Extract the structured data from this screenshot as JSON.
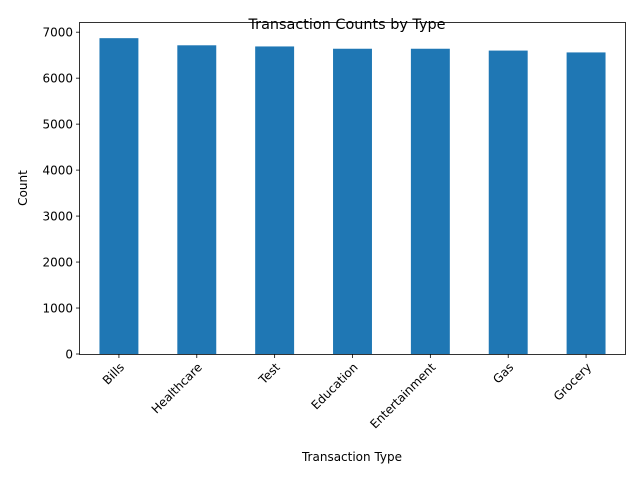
{
  "chart_data": {
    "type": "bar",
    "title": "Transaction Counts by Type",
    "xlabel": "Transaction Type",
    "ylabel": "Count",
    "categories": [
      "Bills",
      "Healthcare",
      "Test",
      "Education",
      "Entertainment",
      "Gas",
      "Grocery"
    ],
    "values": [
      6870,
      6715,
      6690,
      6640,
      6640,
      6600,
      6560
    ],
    "ylim": [
      0,
      7200
    ],
    "yticks": [
      0,
      1000,
      2000,
      3000,
      4000,
      5000,
      6000,
      7000
    ],
    "bar_color": "#1f77b4",
    "grid": false,
    "legend": false
  }
}
